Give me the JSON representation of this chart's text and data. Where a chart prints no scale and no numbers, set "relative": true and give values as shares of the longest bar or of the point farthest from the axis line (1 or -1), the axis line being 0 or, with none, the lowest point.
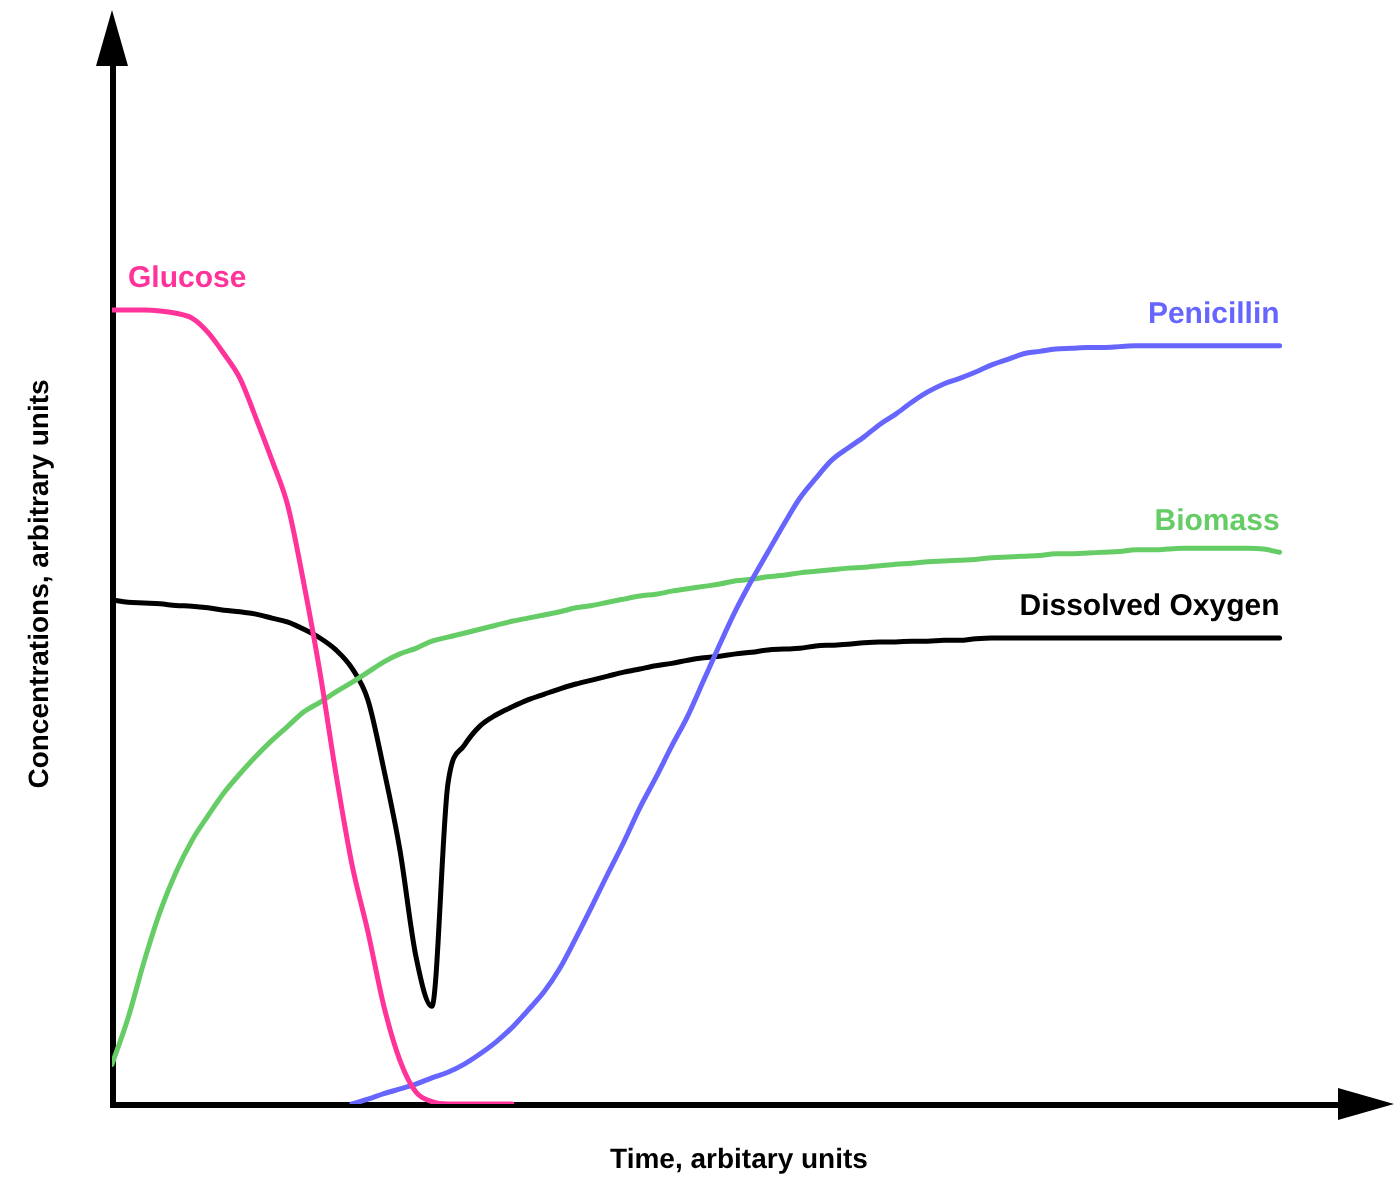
{
  "chart_data": {
    "type": "line",
    "xlabel": "Time, arbitary units",
    "ylabel": "Concentrations, arbitrary units",
    "relative": true,
    "tick_labels": false,
    "grid": false,
    "legend": false,
    "marker": "none",
    "categories": [
      null,
      null,
      null,
      null,
      null,
      null,
      null,
      null,
      null,
      null,
      null,
      null,
      null,
      null,
      null,
      null,
      null,
      null,
      null,
      null,
      null,
      null,
      null,
      null,
      null,
      null,
      null,
      null,
      null,
      null,
      null,
      null,
      null,
      null,
      null,
      null,
      null,
      null,
      null,
      null,
      null,
      null,
      null,
      null,
      null,
      null,
      null,
      null,
      null,
      null,
      null,
      null,
      null,
      null,
      null,
      null,
      null,
      null,
      null,
      null,
      null,
      null,
      null,
      null,
      null,
      null,
      null,
      null,
      null,
      null,
      null,
      null,
      null,
      null
    ],
    "series": [
      {
        "name": "Glucose",
        "color": "#ff3399",
        "values": [
          1,
          1,
          1,
          0.999,
          0.996,
          0.99,
          0.972,
          0.945,
          0.914,
          0.864,
          0.811,
          0.753,
          0.655,
          0.544,
          0.416,
          0.302,
          0.217,
          0.123,
          0.055,
          0.015,
          0.003,
          0,
          0,
          0,
          0,
          0,
          null,
          null,
          null,
          null,
          null,
          null,
          null,
          null,
          null,
          null,
          null,
          null,
          null,
          null,
          null,
          null,
          null,
          null,
          null,
          null,
          null,
          null,
          null,
          null,
          null,
          null,
          null,
          null,
          null,
          null,
          null,
          null,
          null,
          null,
          null,
          null,
          null,
          null,
          null,
          null,
          null,
          null,
          null,
          null,
          null,
          null,
          null,
          null
        ]
      },
      {
        "name": "Penicillin",
        "color": "#6666ff",
        "values": [
          null,
          null,
          null,
          null,
          null,
          null,
          null,
          null,
          null,
          null,
          null,
          null,
          null,
          null,
          null,
          0,
          0.006,
          0.013,
          0.019,
          0.025,
          0.033,
          0.04,
          0.05,
          0.063,
          0.078,
          0.096,
          0.118,
          0.141,
          0.171,
          0.209,
          0.249,
          0.29,
          0.33,
          0.373,
          0.411,
          0.451,
          0.489,
          0.534,
          0.579,
          0.622,
          0.66,
          0.695,
          0.73,
          0.763,
          0.788,
          0.811,
          0.826,
          0.84,
          0.856,
          0.869,
          0.884,
          0.897,
          0.907,
          0.914,
          0.922,
          0.931,
          0.938,
          0.945,
          0.948,
          0.951,
          0.952,
          0.953,
          0.953,
          0.954,
          0.955,
          0.955,
          0.955,
          0.955,
          0.955,
          0.955,
          0.955,
          0.955,
          0.955,
          0.955
        ]
      },
      {
        "name": "Biomass",
        "color": "#66cc66",
        "values": [
          0.05,
          0.108,
          0.179,
          0.242,
          0.292,
          0.332,
          0.363,
          0.392,
          0.416,
          0.438,
          0.458,
          0.476,
          0.494,
          0.506,
          0.519,
          0.531,
          0.544,
          0.557,
          0.567,
          0.574,
          0.583,
          0.588,
          0.593,
          0.598,
          0.603,
          0.608,
          0.612,
          0.616,
          0.62,
          0.625,
          0.628,
          0.632,
          0.636,
          0.64,
          0.642,
          0.646,
          0.649,
          0.652,
          0.655,
          0.659,
          0.661,
          0.664,
          0.666,
          0.669,
          0.671,
          0.673,
          0.675,
          0.676,
          0.678,
          0.68,
          0.681,
          0.683,
          0.684,
          0.685,
          0.686,
          0.688,
          0.689,
          0.69,
          0.691,
          0.693,
          0.693,
          0.694,
          0.695,
          0.696,
          0.698,
          0.698,
          0.699,
          0.7,
          0.7,
          0.7,
          0.7,
          0.7,
          0.699,
          0.695
        ]
      },
      {
        "name": "Dissolved Oxygen",
        "color": "#000000",
        "values": [
          0.635,
          0.632,
          0.631,
          0.63,
          0.628,
          0.627,
          0.625,
          0.622,
          0.62,
          0.617,
          0.612,
          0.607,
          0.598,
          0.587,
          0.572,
          0.549,
          0.509,
          0.421,
          0.32,
          0.186,
          0.123,
          0.403,
          0.451,
          0.476,
          0.49,
          0.5,
          0.509,
          0.516,
          0.523,
          0.529,
          0.534,
          0.539,
          0.544,
          0.548,
          0.552,
          0.555,
          0.559,
          0.562,
          0.564,
          0.567,
          0.569,
          0.572,
          0.573,
          0.574,
          0.577,
          0.578,
          0.579,
          0.581,
          0.582,
          0.582,
          0.583,
          0.583,
          0.584,
          0.584,
          0.586,
          0.587,
          0.587,
          0.587,
          0.587,
          0.587,
          0.587,
          0.587,
          0.587,
          0.587,
          0.587,
          0.587,
          0.587,
          0.587,
          0.587,
          0.587,
          0.587,
          0.587,
          0.587,
          0.587
        ]
      }
    ]
  }
}
